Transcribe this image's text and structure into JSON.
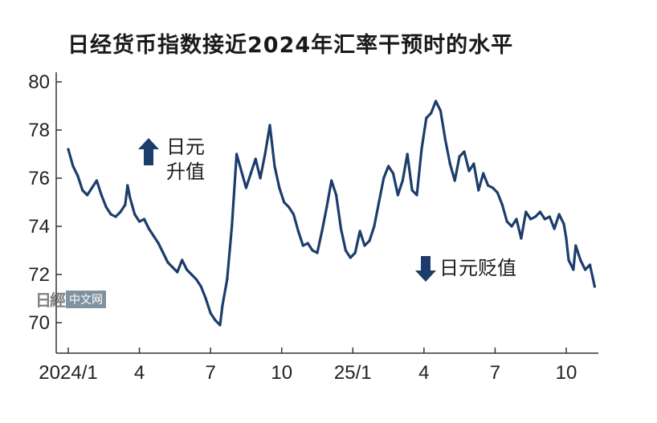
{
  "chart_data": {
    "type": "line",
    "title": "日经货币指数接近2024年汇率干预时的水平",
    "ylim": [
      69,
      80.5
    ],
    "yticks": [
      70,
      72,
      74,
      76,
      78,
      80
    ],
    "xlim": [
      0,
      22.6
    ],
    "xticks": [
      {
        "pos": 0,
        "label": "2024/1"
      },
      {
        "pos": 3,
        "label": "4"
      },
      {
        "pos": 6,
        "label": "7"
      },
      {
        "pos": 9,
        "label": "10"
      },
      {
        "pos": 12,
        "label": "25/1"
      },
      {
        "pos": 15,
        "label": "4"
      },
      {
        "pos": 18,
        "label": "7"
      },
      {
        "pos": 21,
        "label": "10"
      }
    ],
    "annotations": [
      {
        "text": "日元",
        "direction": "up"
      },
      {
        "text": "升值"
      },
      {
        "text": "日元贬值",
        "direction": "down"
      }
    ],
    "line_color": "#1c3d6b",
    "series": [
      {
        "values": [
          [
            0.0,
            77.2
          ],
          [
            0.2,
            76.5
          ],
          [
            0.4,
            76.1
          ],
          [
            0.6,
            75.5
          ],
          [
            0.8,
            75.3
          ],
          [
            1.0,
            75.6
          ],
          [
            1.2,
            75.9
          ],
          [
            1.4,
            75.3
          ],
          [
            1.6,
            74.8
          ],
          [
            1.8,
            74.5
          ],
          [
            2.0,
            74.4
          ],
          [
            2.2,
            74.6
          ],
          [
            2.4,
            74.9
          ],
          [
            2.5,
            75.7
          ],
          [
            2.6,
            75.2
          ],
          [
            2.8,
            74.5
          ],
          [
            3.0,
            74.2
          ],
          [
            3.2,
            74.3
          ],
          [
            3.4,
            73.9
          ],
          [
            3.6,
            73.6
          ],
          [
            3.8,
            73.3
          ],
          [
            4.0,
            72.9
          ],
          [
            4.2,
            72.5
          ],
          [
            4.4,
            72.3
          ],
          [
            4.6,
            72.1
          ],
          [
            4.8,
            72.6
          ],
          [
            5.0,
            72.2
          ],
          [
            5.2,
            72.0
          ],
          [
            5.4,
            71.8
          ],
          [
            5.6,
            71.5
          ],
          [
            5.8,
            71.0
          ],
          [
            6.0,
            70.4
          ],
          [
            6.2,
            70.1
          ],
          [
            6.4,
            69.9
          ],
          [
            6.5,
            70.7
          ],
          [
            6.7,
            71.8
          ],
          [
            6.9,
            74.0
          ],
          [
            7.1,
            77.0
          ],
          [
            7.3,
            76.3
          ],
          [
            7.5,
            75.6
          ],
          [
            7.7,
            76.2
          ],
          [
            7.9,
            76.8
          ],
          [
            8.1,
            76.0
          ],
          [
            8.3,
            77.0
          ],
          [
            8.5,
            78.2
          ],
          [
            8.7,
            76.5
          ],
          [
            8.9,
            75.6
          ],
          [
            9.1,
            75.0
          ],
          [
            9.3,
            74.8
          ],
          [
            9.5,
            74.5
          ],
          [
            9.7,
            73.8
          ],
          [
            9.9,
            73.2
          ],
          [
            10.1,
            73.3
          ],
          [
            10.3,
            73.0
          ],
          [
            10.5,
            72.9
          ],
          [
            10.7,
            73.8
          ],
          [
            10.9,
            74.8
          ],
          [
            11.1,
            75.9
          ],
          [
            11.3,
            75.3
          ],
          [
            11.5,
            73.9
          ],
          [
            11.7,
            73.0
          ],
          [
            11.9,
            72.7
          ],
          [
            12.1,
            72.9
          ],
          [
            12.3,
            73.8
          ],
          [
            12.5,
            73.2
          ],
          [
            12.7,
            73.4
          ],
          [
            12.9,
            74.0
          ],
          [
            13.1,
            75.0
          ],
          [
            13.3,
            76.0
          ],
          [
            13.5,
            76.5
          ],
          [
            13.7,
            76.2
          ],
          [
            13.9,
            75.3
          ],
          [
            14.1,
            75.9
          ],
          [
            14.3,
            77.0
          ],
          [
            14.5,
            75.5
          ],
          [
            14.7,
            75.3
          ],
          [
            14.9,
            77.2
          ],
          [
            15.1,
            78.5
          ],
          [
            15.3,
            78.7
          ],
          [
            15.5,
            79.2
          ],
          [
            15.7,
            78.8
          ],
          [
            15.9,
            77.6
          ],
          [
            16.1,
            76.6
          ],
          [
            16.3,
            75.9
          ],
          [
            16.5,
            76.9
          ],
          [
            16.7,
            77.1
          ],
          [
            16.9,
            76.3
          ],
          [
            17.1,
            76.6
          ],
          [
            17.3,
            75.5
          ],
          [
            17.5,
            76.2
          ],
          [
            17.7,
            75.7
          ],
          [
            17.9,
            75.6
          ],
          [
            18.1,
            75.4
          ],
          [
            18.3,
            74.9
          ],
          [
            18.5,
            74.2
          ],
          [
            18.7,
            74.0
          ],
          [
            18.9,
            74.3
          ],
          [
            19.1,
            73.5
          ],
          [
            19.3,
            74.6
          ],
          [
            19.5,
            74.3
          ],
          [
            19.7,
            74.4
          ],
          [
            19.9,
            74.6
          ],
          [
            20.1,
            74.3
          ],
          [
            20.3,
            74.4
          ],
          [
            20.5,
            73.9
          ],
          [
            20.7,
            74.5
          ],
          [
            20.9,
            74.1
          ],
          [
            21.0,
            73.5
          ],
          [
            21.1,
            72.6
          ],
          [
            21.3,
            72.2
          ],
          [
            21.4,
            73.2
          ],
          [
            21.6,
            72.6
          ],
          [
            21.8,
            72.2
          ],
          [
            22.0,
            72.4
          ],
          [
            22.2,
            71.5
          ]
        ]
      }
    ]
  },
  "watermark": {
    "logo": "日經",
    "text": "中文网"
  }
}
